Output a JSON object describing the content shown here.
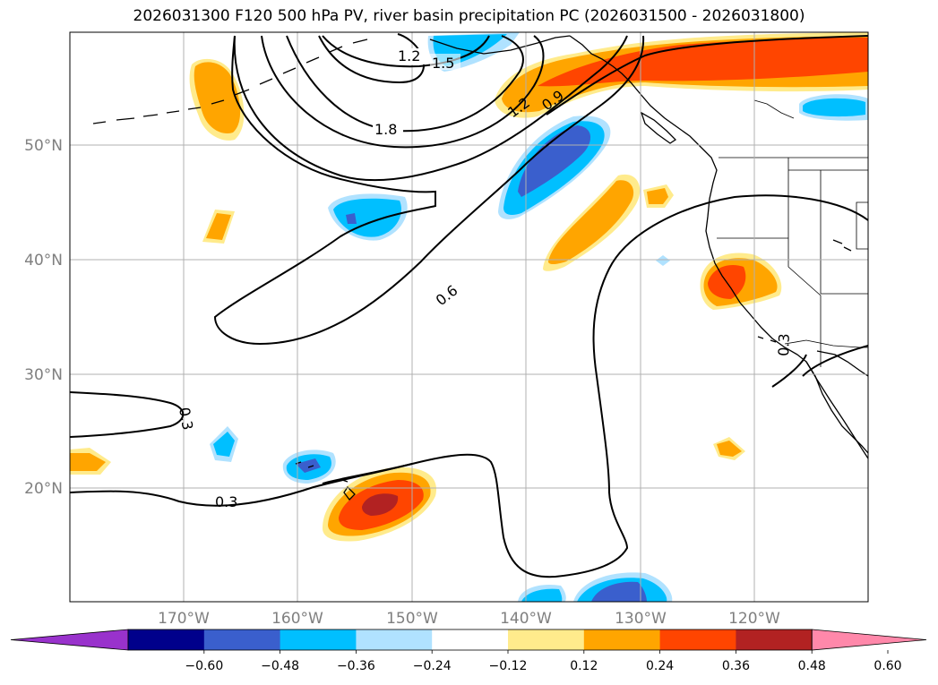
{
  "title": "2026031300 F120 500 hPa PV, river basin precipitation PC (2026031500 - 2026031800)",
  "axes": {
    "lat_labels": [
      "50°N",
      "40°N",
      "30°N",
      "20°N"
    ],
    "lon_labels": [
      "170°W",
      "160°W",
      "150°W",
      "140°W",
      "130°W",
      "120°W"
    ]
  },
  "contour_labels": [
    "1.2",
    "1.5",
    "1.8",
    "1.2",
    "0.9",
    "0.6",
    "0.3",
    "0.3",
    "0.3"
  ],
  "colorbar": {
    "colors": [
      "#9932cc",
      "#00008b",
      "#3a5fcd",
      "#00bfff",
      "#b0e2ff",
      "#ffffff",
      "#ffeb8c",
      "#ffa500",
      "#ff4500",
      "#b22222",
      "#ff88aa"
    ],
    "ticks": [
      "−0.60",
      "−0.48",
      "−0.36",
      "−0.24",
      "−0.12",
      "0.12",
      "0.24",
      "0.36",
      "0.48",
      "0.60"
    ]
  }
}
